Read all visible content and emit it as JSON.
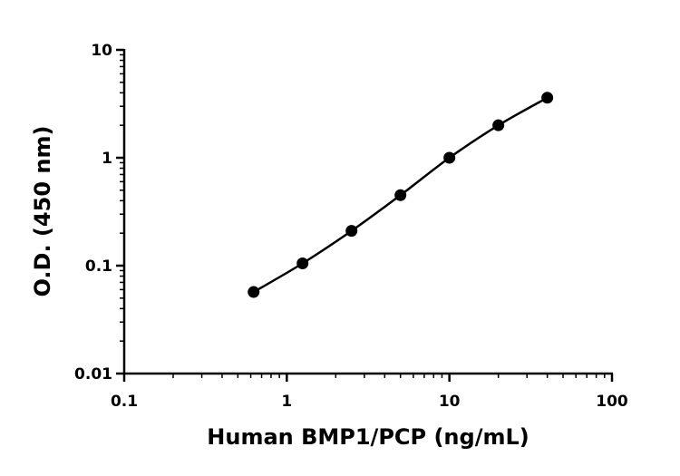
{
  "chart_data": {
    "type": "scatter",
    "title": "",
    "xlabel": "Human BMP1/PCP (ng/mL)",
    "ylabel": "O.D. (450 nm)",
    "x_scale": "log",
    "y_scale": "log",
    "xlim": [
      0.1,
      100
    ],
    "ylim": [
      0.01,
      10
    ],
    "x_ticks": [
      {
        "value": 0.1,
        "label": "0.1"
      },
      {
        "value": 1,
        "label": "1"
      },
      {
        "value": 10,
        "label": "10"
      },
      {
        "value": 100,
        "label": "100"
      }
    ],
    "y_ticks": [
      {
        "value": 0.01,
        "label": "0.01"
      },
      {
        "value": 0.1,
        "label": "0.1"
      },
      {
        "value": 1,
        "label": "1"
      },
      {
        "value": 10,
        "label": "10"
      }
    ],
    "grid": false,
    "legend": "none",
    "series": [
      {
        "points": [
          {
            "x": 0.625,
            "y": 0.057
          },
          {
            "x": 1.25,
            "y": 0.105
          },
          {
            "x": 2.5,
            "y": 0.21
          },
          {
            "x": 5,
            "y": 0.45
          },
          {
            "x": 10,
            "y": 1.0
          },
          {
            "x": 20,
            "y": 2.0
          },
          {
            "x": 40,
            "y": 3.6
          }
        ],
        "color": "#000000",
        "fit_line": true
      }
    ]
  }
}
